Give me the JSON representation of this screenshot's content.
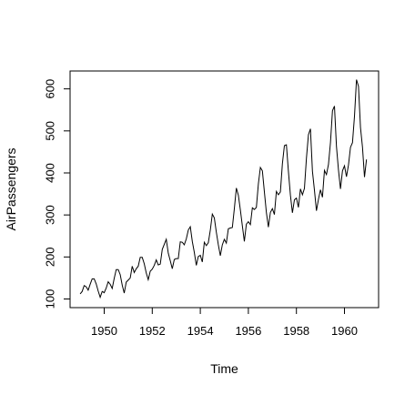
{
  "chart_data": {
    "type": "line",
    "xlabel": "Time",
    "ylabel": "AirPassengers",
    "xlim": [
      1948.58,
      1961.42
    ],
    "ylim": [
      79.44,
      642.56
    ],
    "x_start": 1949,
    "frequency": 12,
    "grid": false,
    "legend": "none",
    "x_ticks": [
      1950,
      1952,
      1954,
      1956,
      1958,
      1960
    ],
    "x_tick_labels": [
      "1950",
      "1952",
      "1954",
      "1956",
      "1958",
      "1960"
    ],
    "y_ticks": [
      100,
      200,
      300,
      400,
      500,
      600
    ],
    "y_tick_labels": [
      "100",
      "200",
      "300",
      "400",
      "500",
      "600"
    ],
    "series": [
      {
        "values": [
          112,
          118,
          132,
          129,
          121,
          135,
          148,
          148,
          136,
          119,
          104,
          118,
          115,
          126,
          141,
          135,
          125,
          149,
          170,
          170,
          158,
          133,
          114,
          140,
          145,
          150,
          178,
          163,
          172,
          178,
          199,
          199,
          184,
          162,
          146,
          166,
          171,
          180,
          193,
          181,
          183,
          218,
          230,
          242,
          209,
          191,
          172,
          194,
          196,
          196,
          236,
          235,
          229,
          243,
          264,
          272,
          237,
          211,
          180,
          201,
          204,
          188,
          235,
          227,
          234,
          264,
          302,
          293,
          259,
          229,
          203,
          229,
          242,
          233,
          267,
          269,
          270,
          315,
          364,
          347,
          312,
          274,
          237,
          278,
          284,
          277,
          317,
          313,
          318,
          374,
          413,
          405,
          355,
          306,
          271,
          306,
          315,
          301,
          356,
          348,
          355,
          422,
          465,
          467,
          404,
          347,
          305,
          336,
          340,
          318,
          362,
          348,
          363,
          435,
          491,
          505,
          404,
          359,
          310,
          337,
          360,
          342,
          406,
          396,
          420,
          472,
          548,
          559,
          463,
          407,
          362,
          405,
          417,
          391,
          419,
          461,
          472,
          535,
          622,
          606,
          508,
          461,
          390,
          432
        ]
      }
    ]
  },
  "colors": {
    "line": "#000000",
    "axis": "#000000",
    "background": "#ffffff"
  }
}
